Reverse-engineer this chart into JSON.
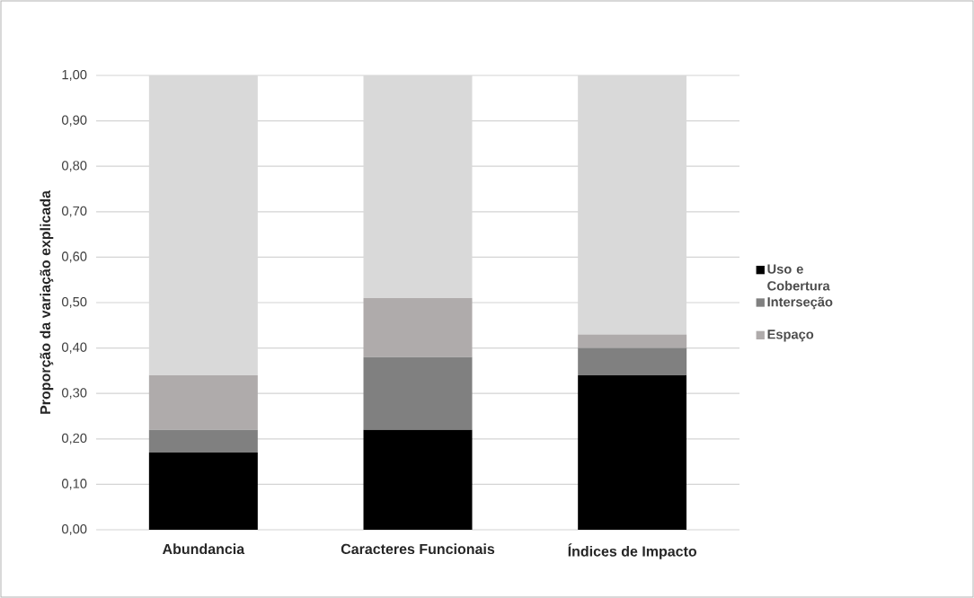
{
  "chart_data": {
    "type": "bar",
    "stacked": true,
    "ylabel": "Proporção da variação explicada",
    "categories": [
      "Abundancia",
      "Caracteres Funcionais",
      "Índices de Impacto"
    ],
    "series": [
      {
        "name": "Uso e Cobertura",
        "color": "#000000",
        "values": [
          0.17,
          0.22,
          0.34
        ]
      },
      {
        "name": "Interseção",
        "color": "#808080",
        "values": [
          0.05,
          0.16,
          0.06
        ]
      },
      {
        "name": "Espaço",
        "color": "#afabab",
        "values": [
          0.12,
          0.13,
          0.03
        ]
      },
      {
        "color": "#d9d9d9",
        "values": [
          0.66,
          0.49,
          0.57
        ]
      }
    ],
    "ylim": [
      0,
      1
    ],
    "yticks": [
      {
        "value": 0,
        "label": "0,00"
      },
      {
        "value": 0.1,
        "label": "0,10"
      },
      {
        "value": 0.2,
        "label": "0,20"
      },
      {
        "value": 0.3,
        "label": "0,30"
      },
      {
        "value": 0.4,
        "label": "0,40"
      },
      {
        "value": 0.5,
        "label": "0,50"
      },
      {
        "value": 0.6,
        "label": "0,60"
      },
      {
        "value": 0.7,
        "label": "0,70"
      },
      {
        "value": 0.8,
        "label": "0,80"
      },
      {
        "value": 0.9,
        "label": "0,90"
      },
      {
        "value": 1,
        "label": "1,00"
      }
    ],
    "grid": "y",
    "legend": "right"
  }
}
